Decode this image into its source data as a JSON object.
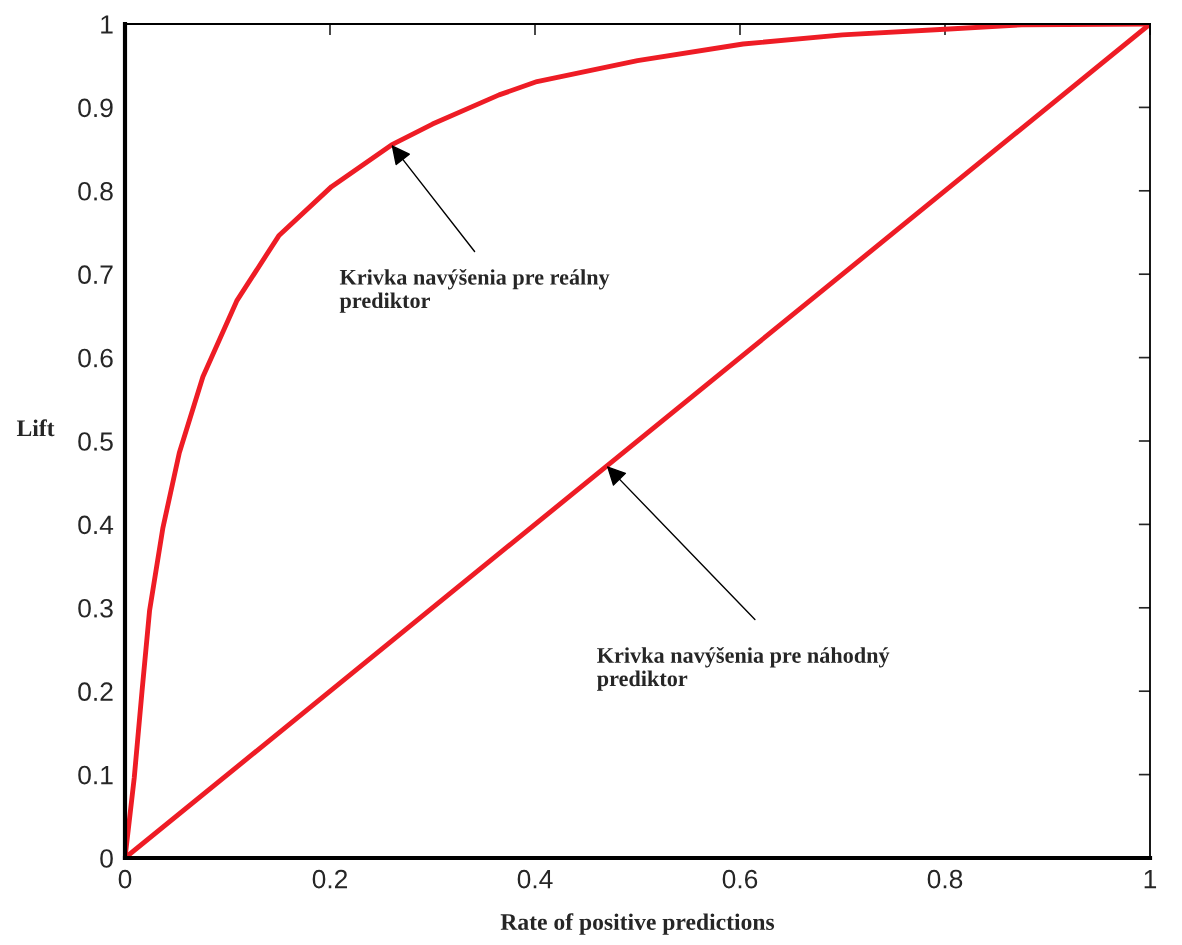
{
  "chart_data": {
    "type": "line",
    "xlabel": "Rate of positive predictions",
    "ylabel": "Lift",
    "series": [
      {
        "color": "#ee1c25",
        "x": [
          0,
          0.009,
          0.0166,
          0.024,
          0.037,
          0.053,
          0.076,
          0.109,
          0.15,
          0.2015,
          0.26,
          0.3,
          0.365,
          0.402,
          0.5,
          0.603,
          0.7,
          0.804,
          0.875,
          1
        ],
        "values": [
          0,
          0.096,
          0.2,
          0.297,
          0.396,
          0.486,
          0.577,
          0.668,
          0.746,
          0.805,
          0.855,
          0.88,
          0.915,
          0.931,
          0.956,
          0.976,
          0.987,
          0.994,
          0.999,
          1
        ]
      },
      {
        "color": "#ee1c25",
        "x": [
          0,
          1
        ],
        "values": [
          0,
          1
        ]
      }
    ],
    "annotations": [
      {
        "text": "Krivka navýšenia pre reálny\nprediktor",
        "x": 0.26,
        "y": 0.855
      },
      {
        "text": "Krivka navýšenia pre náhodný\nprediktor",
        "x": 0.47,
        "y": 0.47
      }
    ],
    "xlim": [
      0,
      1
    ],
    "ylim": [
      0,
      1
    ],
    "xticks": [
      0,
      0.2,
      0.4,
      0.6,
      0.8,
      1
    ],
    "yticks": [
      0,
      0.1,
      0.2,
      0.3,
      0.4,
      0.5,
      0.6,
      0.7,
      0.8,
      0.9,
      1
    ],
    "grid": false,
    "marker": "none",
    "line_style": "solid",
    "legend": false
  }
}
